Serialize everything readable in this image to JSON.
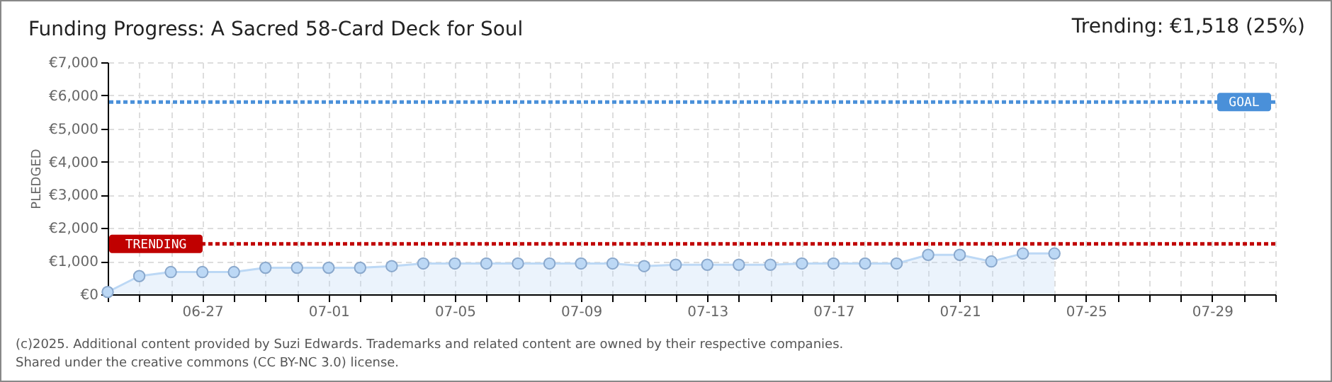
{
  "chart_data": {
    "type": "area",
    "title": "Funding Progress: A Sacred 58-Card Deck for Soul",
    "ylabel": "PLEDGED",
    "annotations": [
      "Trending:  €1,518 (25%)",
      "(c)2025. Additional content provided by Suzi Edwards. Trademarks and related content are owned by their respective companies.",
      "Shared under the creative commons (CC BY-NC 3.0) license."
    ],
    "x": [
      "2025-06-24",
      "2025-06-25",
      "2025-06-26",
      "2025-06-27",
      "2025-06-28",
      "2025-06-29",
      "2025-06-30",
      "2025-07-01",
      "2025-07-02",
      "2025-07-03",
      "2025-07-04",
      "2025-07-05",
      "2025-07-06",
      "2025-07-07",
      "2025-07-08",
      "2025-07-09",
      "2025-07-10",
      "2025-07-11",
      "2025-07-12",
      "2025-07-13",
      "2025-07-14",
      "2025-07-15",
      "2025-07-16",
      "2025-07-17",
      "2025-07-18",
      "2025-07-19",
      "2025-07-20",
      "2025-07-21",
      "2025-07-22",
      "2025-07-23",
      "2025-07-24"
    ],
    "series": [
      {
        "color": "#bcd8f5",
        "values": [
          70,
          550,
          670,
          670,
          670,
          800,
          800,
          800,
          800,
          850,
          930,
          930,
          930,
          930,
          930,
          930,
          930,
          850,
          890,
          890,
          890,
          890,
          930,
          930,
          930,
          930,
          1190,
          1190,
          990,
          1230,
          1230
        ]
      }
    ],
    "marker": "circle",
    "grid": true,
    "ylim": [
      0,
      7000
    ],
    "yticks": [
      {
        "value": 0,
        "label": "€0"
      },
      {
        "value": 1000,
        "label": "€1,000"
      },
      {
        "value": 2000,
        "label": "€2,000"
      },
      {
        "value": 3000,
        "label": "€3,000"
      },
      {
        "value": 4000,
        "label": "€4,000"
      },
      {
        "value": 5000,
        "label": "€5,000"
      },
      {
        "value": 6000,
        "label": "€6,000"
      },
      {
        "value": 7000,
        "label": "€7,000"
      }
    ],
    "xlim": [
      "2025-06-24",
      "2025-07-31"
    ],
    "xticks": [
      {
        "value": "2025-06-24",
        "label": null
      },
      {
        "value": "2025-06-25",
        "label": null
      },
      {
        "value": "2025-06-26",
        "label": null
      },
      {
        "value": "2025-06-27",
        "label": "06-27"
      },
      {
        "value": "2025-06-28",
        "label": null
      },
      {
        "value": "2025-06-29",
        "label": null
      },
      {
        "value": "2025-06-30",
        "label": null
      },
      {
        "value": "2025-07-01",
        "label": "07-01"
      },
      {
        "value": "2025-07-02",
        "label": null
      },
      {
        "value": "2025-07-03",
        "label": null
      },
      {
        "value": "2025-07-04",
        "label": null
      },
      {
        "value": "2025-07-05",
        "label": "07-05"
      },
      {
        "value": "2025-07-06",
        "label": null
      },
      {
        "value": "2025-07-07",
        "label": null
      },
      {
        "value": "2025-07-08",
        "label": null
      },
      {
        "value": "2025-07-09",
        "label": "07-09"
      },
      {
        "value": "2025-07-10",
        "label": null
      },
      {
        "value": "2025-07-11",
        "label": null
      },
      {
        "value": "2025-07-12",
        "label": null
      },
      {
        "value": "2025-07-13",
        "label": "07-13"
      },
      {
        "value": "2025-07-14",
        "label": null
      },
      {
        "value": "2025-07-15",
        "label": null
      },
      {
        "value": "2025-07-16",
        "label": null
      },
      {
        "value": "2025-07-17",
        "label": "07-17"
      },
      {
        "value": "2025-07-18",
        "label": null
      },
      {
        "value": "2025-07-19",
        "label": null
      },
      {
        "value": "2025-07-20",
        "label": null
      },
      {
        "value": "2025-07-21",
        "label": "07-21"
      },
      {
        "value": "2025-07-22",
        "label": null
      },
      {
        "value": "2025-07-23",
        "label": null
      },
      {
        "value": "2025-07-24",
        "label": null
      },
      {
        "value": "2025-07-25",
        "label": "07-25"
      },
      {
        "value": "2025-07-26",
        "label": null
      },
      {
        "value": "2025-07-27",
        "label": null
      },
      {
        "value": "2025-07-28",
        "label": null
      },
      {
        "value": "2025-07-29",
        "label": "07-29"
      },
      {
        "value": "2025-07-30",
        "label": null
      },
      {
        "value": "2025-07-31",
        "label": null
      }
    ],
    "ref_lines": [
      {
        "axis": "y",
        "value": 5800,
        "label": "GOAL",
        "color": "#4a90d9",
        "line_style": "dotted"
      },
      {
        "axis": "y",
        "value": 1518,
        "label": "TRENDING",
        "color": "#c00000",
        "line_style": "dotted"
      }
    ]
  }
}
